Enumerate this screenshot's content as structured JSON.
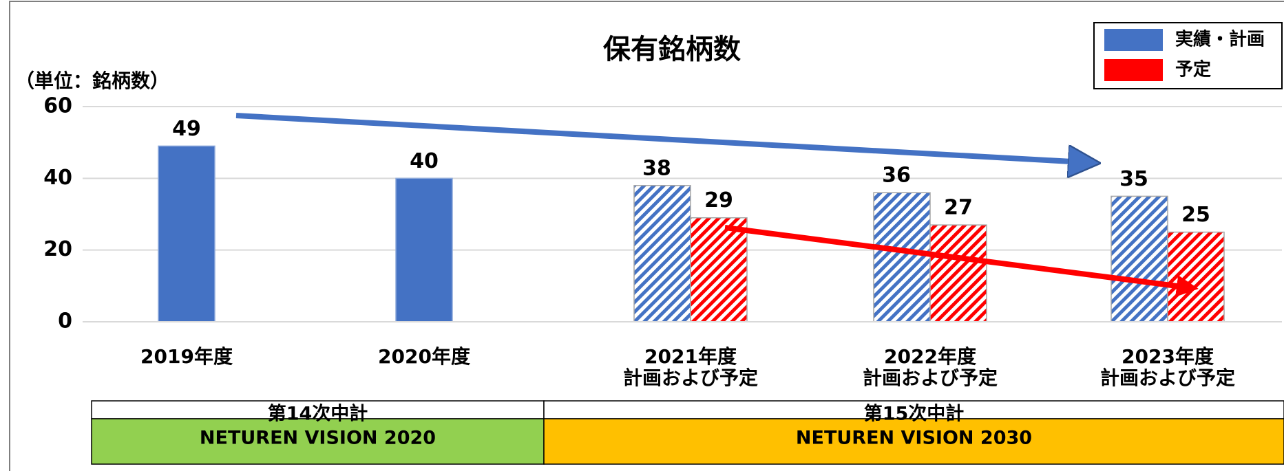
{
  "chart_data": {
    "type": "bar",
    "title": "保有銘柄数",
    "y_label": "（単位：銘柄数）",
    "categories": [
      "2019年度",
      "2020年度",
      "2021年度",
      "2022年度",
      "2023年度"
    ],
    "category_sublabels": [
      null,
      null,
      "計画および予定",
      "計画および予定",
      "計画および予定"
    ],
    "hatched": [
      false,
      false,
      true,
      true,
      true
    ],
    "series": [
      {
        "name": "実績・計画",
        "color": "#4472c4",
        "values": [
          49,
          40,
          38,
          36,
          35
        ]
      },
      {
        "name": "予定",
        "color": "#ff0000",
        "values": [
          null,
          null,
          29,
          27,
          25
        ]
      }
    ],
    "ylim": [
      0,
      60
    ],
    "yticks": [
      0,
      20,
      40,
      60
    ],
    "grid": true,
    "legend": "upper right"
  },
  "footer_table": [
    {
      "period": "第14次中計",
      "vision": "NETUREN VISION 2020",
      "color": "#92d050"
    },
    {
      "period": "第15次中計",
      "vision": "NETUREN VISION 2030",
      "color": "#ffc000"
    }
  ]
}
